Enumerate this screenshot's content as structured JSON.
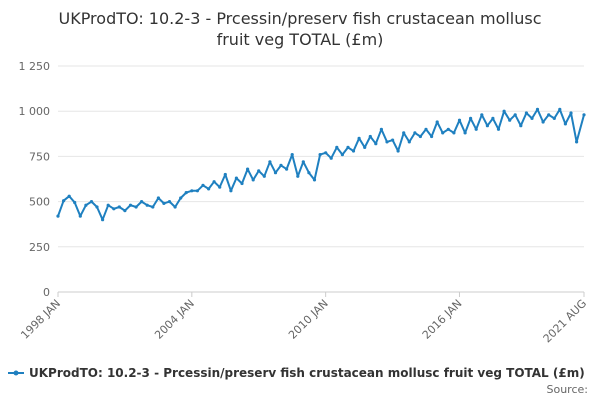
{
  "chart_data": {
    "type": "line",
    "title_lines": [
      "UKProdTO: 10.2-3 - Prcessin/preserv fish crustacean mollusc",
      "fruit veg TOTAL (£m)"
    ],
    "ylim": [
      0,
      1250
    ],
    "yticks": [
      0,
      250,
      500,
      750,
      1000,
      1250
    ],
    "ytick_labels": [
      "0",
      "250",
      "500",
      "750",
      "1 000",
      "1 250"
    ],
    "xlim": [
      1998.0,
      2021.583
    ],
    "xticks": [
      1998.0,
      2004.0,
      2010.0,
      2016.0,
      2021.583
    ],
    "xtick_labels": [
      "1998 JAN",
      "2004 JAN",
      "2010 JAN",
      "2016 JAN",
      "2021 AUG"
    ],
    "grid": true,
    "legend_position": "bottom",
    "series": [
      {
        "name": "UKProdTO: 10.2-3 - Prcessin/preserv fish crustacean mollusc fruit veg TOTAL (£m)",
        "color": "#1f80c0",
        "x": [
          1998.0,
          1998.25,
          1998.5,
          1998.75,
          1999.0,
          1999.25,
          1999.5,
          1999.75,
          2000.0,
          2000.25,
          2000.5,
          2000.75,
          2001.0,
          2001.25,
          2001.5,
          2001.75,
          2002.0,
          2002.25,
          2002.5,
          2002.75,
          2003.0,
          2003.25,
          2003.5,
          2003.75,
          2004.0,
          2004.25,
          2004.5,
          2004.75,
          2005.0,
          2005.25,
          2005.5,
          2005.75,
          2006.0,
          2006.25,
          2006.5,
          2006.75,
          2007.0,
          2007.25,
          2007.5,
          2007.75,
          2008.0,
          2008.25,
          2008.5,
          2008.75,
          2009.0,
          2009.25,
          2009.5,
          2009.75,
          2010.0,
          2010.25,
          2010.5,
          2010.75,
          2011.0,
          2011.25,
          2011.5,
          2011.75,
          2012.0,
          2012.25,
          2012.5,
          2012.75,
          2013.0,
          2013.25,
          2013.5,
          2013.75,
          2014.0,
          2014.25,
          2014.5,
          2014.75,
          2015.0,
          2015.25,
          2015.5,
          2015.75,
          2016.0,
          2016.25,
          2016.5,
          2016.75,
          2017.0,
          2017.25,
          2017.5,
          2017.75,
          2018.0,
          2018.25,
          2018.5,
          2018.75,
          2019.0,
          2019.25,
          2019.5,
          2019.75,
          2020.0,
          2020.25,
          2020.5,
          2020.75,
          2021.0,
          2021.25,
          2021.583
        ],
        "y": [
          420,
          505,
          530,
          495,
          420,
          480,
          500,
          470,
          400,
          480,
          460,
          470,
          450,
          480,
          470,
          500,
          480,
          470,
          520,
          490,
          500,
          470,
          520,
          550,
          560,
          560,
          590,
          570,
          610,
          580,
          650,
          560,
          630,
          600,
          680,
          620,
          670,
          640,
          720,
          660,
          700,
          680,
          760,
          640,
          720,
          660,
          620,
          760,
          770,
          740,
          800,
          760,
          800,
          780,
          850,
          800,
          860,
          820,
          900,
          830,
          840,
          780,
          880,
          830,
          880,
          860,
          900,
          860,
          940,
          880,
          900,
          880,
          950,
          880,
          960,
          900,
          980,
          920,
          960,
          900,
          1000,
          950,
          980,
          920,
          990,
          960,
          1010,
          940,
          980,
          960,
          1010,
          930,
          990,
          830,
          980
        ]
      }
    ]
  },
  "legend": {
    "label": "UKProdTO: 10.2-3 - Prcessin/preserv fish crustacean mollusc fruit veg TOTAL (£m)"
  },
  "source": {
    "label": "Source:"
  }
}
